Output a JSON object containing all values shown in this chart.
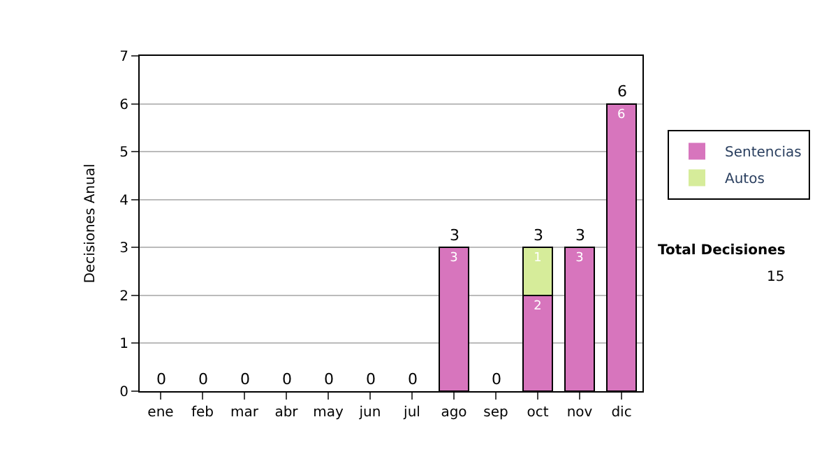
{
  "chart_data": {
    "type": "bar",
    "stacked": true,
    "ylabel": "Decisiones Anual",
    "categories": [
      "ene",
      "feb",
      "mar",
      "abr",
      "may",
      "jun",
      "jul",
      "ago",
      "sep",
      "oct",
      "nov",
      "dic"
    ],
    "series": [
      {
        "name": "Sentencias",
        "color": "#d775bd",
        "values": [
          0,
          0,
          0,
          0,
          0,
          0,
          0,
          3,
          0,
          2,
          3,
          6
        ],
        "value_labels": [
          null,
          null,
          null,
          null,
          null,
          null,
          null,
          "3",
          null,
          "2",
          "3",
          "6"
        ]
      },
      {
        "name": "Autos",
        "color": "#d6ec9a",
        "values": [
          0,
          0,
          0,
          0,
          0,
          0,
          0,
          0,
          0,
          1,
          0,
          0
        ],
        "value_labels": [
          null,
          null,
          null,
          null,
          null,
          null,
          null,
          null,
          null,
          "1",
          null,
          null
        ]
      }
    ],
    "totals": [
      "0",
      "0",
      "0",
      "0",
      "0",
      "0",
      "0",
      "3",
      "0",
      "3",
      "3",
      "6"
    ],
    "ylim": [
      0,
      7
    ],
    "yticks": [
      0,
      1,
      2,
      3,
      4,
      5,
      6,
      7
    ],
    "grid": "y",
    "legend": "right",
    "annotations": [
      "Total Decisiones",
      "15"
    ]
  }
}
